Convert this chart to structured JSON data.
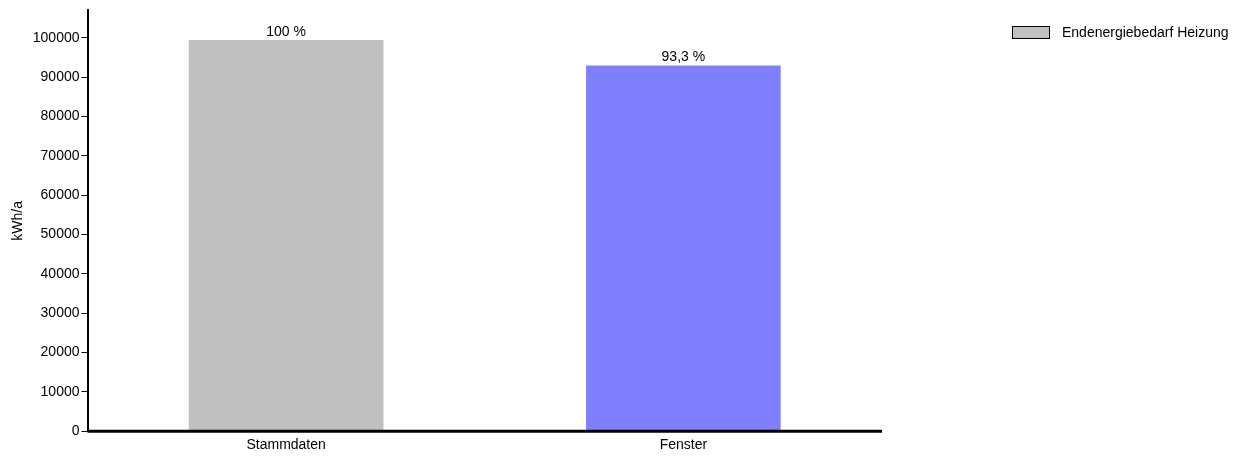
{
  "chart_data": {
    "type": "bar",
    "ylabel": "kWh/a",
    "categories": [
      "Stammdaten",
      "Fenster"
    ],
    "series": [
      {
        "name": "Endenergiebedarf Heizung",
        "colors": [
          "#c0c0c0",
          "#8080ff"
        ],
        "values": [
          99500,
          93000
        ]
      }
    ],
    "annotations": [
      {
        "text": "100 %",
        "x": "Stammdaten",
        "y": 99500
      },
      {
        "text": "93,3 %",
        "x": "Fenster",
        "y": 93000
      }
    ],
    "ylim": [
      0,
      107000
    ],
    "yticks": [
      0,
      10000,
      20000,
      30000,
      40000,
      50000,
      60000,
      70000,
      80000,
      90000,
      100000
    ],
    "grid": false,
    "legend": "top right"
  }
}
